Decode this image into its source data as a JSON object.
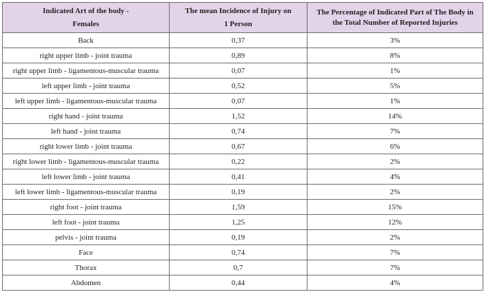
{
  "table": {
    "headers": [
      {
        "line1": "Indicated  Art of the body -",
        "line2": "Females"
      },
      {
        "line1": "The mean Incidence of Injury on",
        "line2": "1 Person"
      },
      {
        "line1": "The Percentage of Indicated Part of The Body in",
        "line2": "the Total Number of Reported Injuries"
      }
    ],
    "rows": [
      [
        "Back",
        "0,37",
        "3%"
      ],
      [
        "right upper limb - joint trauma",
        "0,89",
        "8%"
      ],
      [
        "right upper limb - ligamentous-muscular trauma",
        "0,07",
        "1%"
      ],
      [
        "left upper limb - joint trauma",
        "0,52",
        "5%"
      ],
      [
        "left upper limb - ligamentous-muscular trauma",
        "0,07",
        "1%"
      ],
      [
        "right hand - joint trauma",
        "1,52",
        "14%"
      ],
      [
        "left hand - joint trauma",
        "0,74",
        "7%"
      ],
      [
        "right lower limb - joint trauma",
        "0,67",
        "6%"
      ],
      [
        "right lower limb - ligamentous-muscular trauma",
        "0,22",
        "2%"
      ],
      [
        "left lower limb - joint trauma",
        "0,41",
        "4%"
      ],
      [
        "left lower limb - ligamentous-muscular trauma",
        "0,19",
        "2%"
      ],
      [
        "right foot - joint trauma",
        "1,59",
        "15%"
      ],
      [
        "left foot - joint trauma",
        "1,25",
        "12%"
      ],
      [
        "pelvis - joint trauma",
        "0,19",
        "2%"
      ],
      [
        "Face",
        "0,74",
        "7%"
      ],
      [
        "Thorax",
        "0,7",
        "7%"
      ],
      [
        "Abdomen",
        "0,44",
        "4%"
      ]
    ]
  },
  "colors": {
    "header_bg": "#e3d3e8",
    "border": "#6b6b6b"
  }
}
